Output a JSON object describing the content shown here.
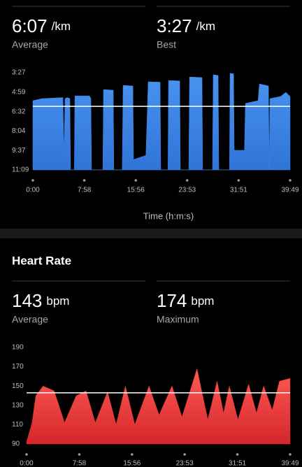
{
  "pace_summary": {
    "average": {
      "value": "6:07",
      "unit": "/km",
      "label": "Average"
    },
    "best": {
      "value": "3:27",
      "unit": "/km",
      "label": "Best"
    }
  },
  "heart_rate": {
    "title": "Heart Rate",
    "average": {
      "value": "143",
      "unit": "bpm",
      "label": "Average"
    },
    "maximum": {
      "value": "174",
      "unit": "bpm",
      "label": "Maximum"
    }
  },
  "chart_data": [
    {
      "type": "area",
      "color": "#3a86e8",
      "xlabel": "Time (h:m:s)",
      "x": [
        0,
        84,
        279,
        289,
        299,
        318,
        344,
        350,
        385,
        390,
        526,
        539,
        545,
        650,
        656,
        747,
        752,
        830,
        838,
        929,
        935,
        1050,
        1071,
        1182,
        1188,
        1255,
        1260,
        1364,
        1370,
        1448,
        1455,
        1571,
        1577,
        1668,
        1675,
        1721,
        1727,
        1826,
        1831,
        1864,
        1870,
        1965,
        1974,
        2091,
        2104,
        2188,
        2195,
        2201,
        2300,
        2350,
        2389
      ],
      "values": [
        340,
        330,
        325,
        600,
        330,
        325,
        330,
        669,
        669,
        317,
        317,
        330,
        669,
        669,
        287,
        290,
        669,
        669,
        267,
        270,
        620,
        600,
        250,
        252,
        669,
        669,
        244,
        246,
        669,
        669,
        227,
        230,
        669,
        669,
        217,
        220,
        669,
        669,
        210,
        212,
        576,
        576,
        353,
        340,
        260,
        270,
        669,
        330,
        320,
        300,
        320
      ],
      "xlim": [
        0,
        2389
      ],
      "xticks": [
        {
          "value": 0,
          "label": "0:00"
        },
        {
          "value": 478,
          "label": "7:58"
        },
        {
          "value": 956,
          "label": "15:56"
        },
        {
          "value": 1433,
          "label": "23:53"
        },
        {
          "value": 1911,
          "label": "31:51"
        },
        {
          "value": 2389,
          "label": "39:49"
        }
      ],
      "ylim": [
        669,
        207
      ],
      "yticks": [
        {
          "value": 207,
          "label": "3:27"
        },
        {
          "value": 299,
          "label": "4:59"
        },
        {
          "value": 392,
          "label": "6:32"
        },
        {
          "value": 484,
          "label": "8:04"
        },
        {
          "value": 577,
          "label": "9:37"
        },
        {
          "value": 669,
          "label": "11:09"
        }
      ],
      "reference_line": {
        "value": 367,
        "color": "#ffffff"
      }
    },
    {
      "type": "area",
      "color": "#e53935",
      "x": [
        0,
        20,
        50,
        84,
        150,
        250,
        344,
        450,
        539,
        623,
        734,
        812,
        896,
        981,
        1110,
        1201,
        1318,
        1409,
        1545,
        1643,
        1727,
        1786,
        1838,
        1916,
        2013,
        2084,
        2149,
        2227,
        2292,
        2389
      ],
      "values": [
        92,
        100,
        112,
        140,
        150,
        145,
        112,
        140,
        145,
        112,
        144,
        110,
        150,
        110,
        150,
        120,
        150,
        118,
        168,
        115,
        155,
        122,
        150,
        115,
        152,
        122,
        150,
        125,
        155,
        158
      ],
      "xlim": [
        0,
        2389
      ],
      "xticks": [
        {
          "value": 0,
          "label": "0:00"
        },
        {
          "value": 478,
          "label": "7:58"
        },
        {
          "value": 956,
          "label": "15:56"
        },
        {
          "value": 1433,
          "label": "23:53"
        },
        {
          "value": 1911,
          "label": "31:51"
        },
        {
          "value": 2389,
          "label": "39:49"
        }
      ],
      "ylim": [
        90,
        190
      ],
      "yticks": [
        90,
        110,
        130,
        150,
        170,
        190
      ],
      "reference_line": {
        "value": 143,
        "color": "#ffffff"
      }
    }
  ]
}
